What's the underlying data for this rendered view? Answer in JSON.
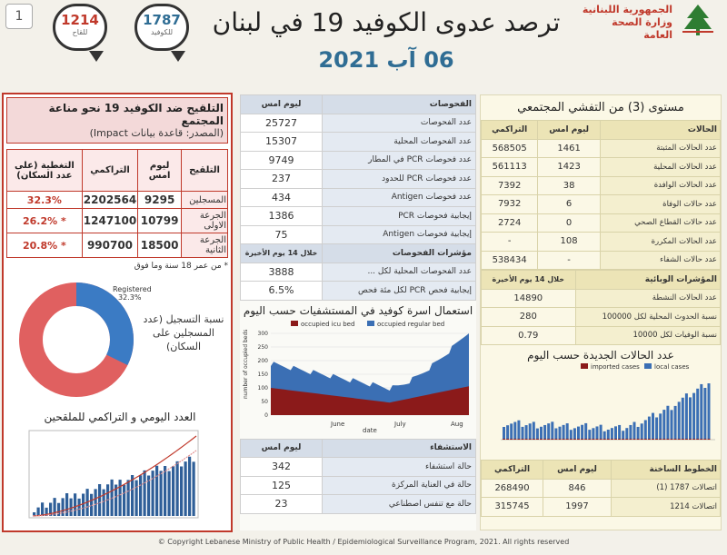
{
  "page_number": "1",
  "title": "ترصد عدوى الكوفيد 19 في لبنان",
  "date": "06 آب 2021",
  "logo": {
    "line1": "الجمهورية اللبنانية",
    "line2": "وزارة الصحة العامة"
  },
  "hotlines": [
    {
      "number": "1787",
      "label": "للكوفيد"
    },
    {
      "number": "1214",
      "label": "للقاح"
    }
  ],
  "vaccination": {
    "title": "التلقيح ضد الكوفيد 19  نحو مناعة المجتمع",
    "source": "(المصدر: قاعدة بيانات Impact)",
    "headers": [
      "التلقيح",
      "ليوم امس",
      "التراكمي",
      "التغطية (على عدد السكان)"
    ],
    "rows": [
      {
        "label": "المسجلين",
        "today": "9295",
        "total": "2202564",
        "coverage": "32.3%"
      },
      {
        "label": "الجرعة الاولى",
        "today": "10799",
        "total": "1247100",
        "coverage": "26.2% *"
      },
      {
        "label": "الجرعة الثانية",
        "today": "18500",
        "total": "990700",
        "coverage": "20.8% *"
      }
    ],
    "footnote": "* من عمر 18 سنة وما فوق",
    "donut_label": "Registered",
    "donut_pct": "32.3%",
    "donut_value": 32.3,
    "donut_caption": "نسبة التسجيل (عدد المسجلين على السكان)",
    "daily_title": "العدد اليومي و التراكمي للملقحين"
  },
  "tests": {
    "header": [
      "الفحوصات",
      "ليوم امس"
    ],
    "rows": [
      [
        "عدد الفحوصات",
        "25727"
      ],
      [
        "عدد الفحوصات المحلية",
        "15307"
      ],
      [
        "عدد فحوصات PCR في المطار",
        "9749"
      ],
      [
        "عدد فحوصات PCR للحدود",
        "237"
      ],
      [
        "عدد فحوصات Antigen",
        "434"
      ],
      [
        "إيجابية فحوصات PCR",
        "1386"
      ],
      [
        "إيجابية فحوصات Antigen",
        "75"
      ]
    ],
    "indicators_header": [
      "مؤشرات الفحوصات",
      "خلال 14 يوم الأخيرة"
    ],
    "indicators": [
      [
        "عدد الفحوصات المحلية لكل ...",
        "3888"
      ],
      [
        "إيجابية فحص PCR لكل مئة فحص",
        "6.5%"
      ]
    ]
  },
  "hospital_chart": {
    "title": "استعمال اسرة كوفيد في المستشفيات حسب اليوم",
    "legend": [
      "occupied icu bed",
      "occupied regular bed"
    ],
    "xlabel": "date",
    "ylabel": "number of occupied beds",
    "ticks": [
      "June",
      "July",
      "Aug"
    ],
    "yticks": [
      "0",
      "50",
      "100",
      "150",
      "200",
      "250",
      "300"
    ]
  },
  "hospitalization": {
    "header": [
      "الاستشفاء",
      "ليوم امس"
    ],
    "rows": [
      [
        "حالة استشفاء",
        "342"
      ],
      [
        "حالة في العناية المركزة",
        "125"
      ],
      [
        "حالة مع تنفس اصطناعي",
        "23"
      ]
    ]
  },
  "community": {
    "title": "مستوى (3) من التفشي المجتمعي",
    "header": [
      "الحالات",
      "ليوم امس",
      "التراكمي"
    ],
    "rows": [
      [
        "عدد الحالات المثبتة",
        "1461",
        "568505"
      ],
      [
        "عدد الحالات المحلية",
        "1423",
        "561113"
      ],
      [
        "عدد الحالات الوافدة",
        "38",
        "7392"
      ],
      [
        "عدد حالات الوفاة",
        "6",
        "7932"
      ],
      [
        "عدد حالات القطاع الصحي",
        "0",
        "2724"
      ],
      [
        "عدد الحالات المكررة",
        "108",
        "-"
      ],
      [
        "عدد حالات الشفاء",
        "-",
        "538434"
      ]
    ],
    "indicators_header": [
      "المؤشرات الوبائية",
      "خلال 14 يوم الأخيرة"
    ],
    "indicators": [
      [
        "عدد الحالات النشطة",
        "14890"
      ],
      [
        "نسبة الحدوث المحلية لكل 100000",
        "280"
      ],
      [
        "نسبة الوفيات لكل 10000",
        "0.79"
      ]
    ]
  },
  "cases_chart": {
    "title": "عدد الحالات الجديدة حسب اليوم",
    "legend": [
      "imported cases",
      "local cases"
    ]
  },
  "hotline_stats": {
    "header": [
      "الخطوط الساخنة",
      "ليوم امس",
      "التراكمي"
    ],
    "rows": [
      [
        "اتصالات 1787 (1)",
        "846",
        "268490"
      ],
      [
        "اتصالات 1214",
        "1997",
        "315745"
      ]
    ]
  },
  "copyright": "© Copyright Lebanese Ministry of Public Health / Epidemiological Surveillance Program, 2021. All rights reserved"
}
